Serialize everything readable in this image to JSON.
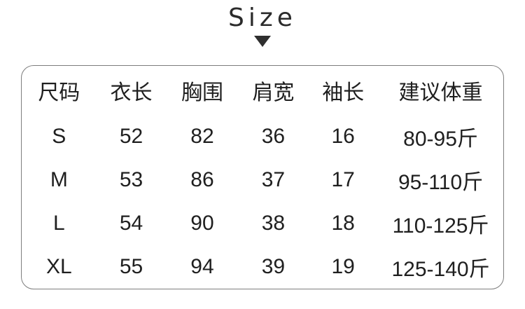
{
  "title": "Size",
  "colors": {
    "background": "#ffffff",
    "text": "#1f1f1f",
    "table_border": "#7d7d7d",
    "arrow": "#2f2f2f"
  },
  "icons": {
    "arrow_down": "triangle-down-icon"
  },
  "chart_data": {
    "type": "table",
    "title": "Size",
    "columns": [
      "尺码",
      "衣长",
      "胸围",
      "肩宽",
      "袖长",
      "建议体重"
    ],
    "rows": [
      [
        "S",
        "52",
        "82",
        "36",
        "16",
        "80-95斤"
      ],
      [
        "M",
        "53",
        "86",
        "37",
        "17",
        "95-110斤"
      ],
      [
        "L",
        "54",
        "90",
        "38",
        "18",
        "110-125斤"
      ],
      [
        "XL",
        "55",
        "94",
        "39",
        "19",
        "125-140斤"
      ]
    ],
    "layout": {
      "grid": false,
      "outer_border": "rounded",
      "header_position": "top"
    }
  }
}
